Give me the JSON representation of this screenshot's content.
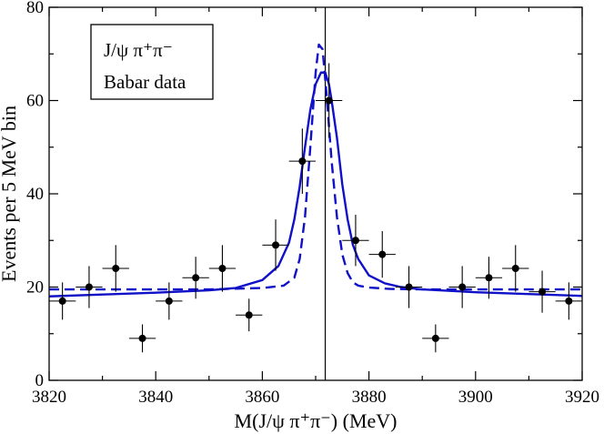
{
  "chart_data": {
    "type": "scatter",
    "title": "",
    "xlabel": "M(J/ψ π⁺π⁻) (MeV)",
    "ylabel": "Events per 5 MeV bin",
    "xlim": [
      3820,
      3920
    ],
    "ylim": [
      0,
      80
    ],
    "x_ticks": [
      3820,
      3840,
      3860,
      3880,
      3900,
      3920
    ],
    "x_tick_labels": [
      "3820",
      "3840",
      "3860",
      "3880",
      "3900",
      "3920"
    ],
    "y_ticks": [
      0,
      20,
      40,
      60,
      80
    ],
    "y_tick_labels": [
      "0",
      "20",
      "40",
      "60",
      "80"
    ],
    "legend": {
      "line1": "J/ψ π⁺π⁻",
      "line2": "Babar data",
      "placement": "top-left"
    },
    "vertical_line_x": 3871.8,
    "series": [
      {
        "name": "Babar data",
        "kind": "points-with-errors",
        "x": [
          3822.5,
          3827.5,
          3832.5,
          3837.5,
          3842.5,
          3847.5,
          3852.5,
          3857.5,
          3862.5,
          3867.5,
          3872.5,
          3877.5,
          3882.5,
          3887.5,
          3892.5,
          3897.5,
          3902.5,
          3907.5,
          3912.5,
          3917.5
        ],
        "y": [
          17,
          20,
          24,
          9,
          17,
          22,
          24,
          14,
          29,
          47,
          60,
          30,
          27,
          20,
          9,
          20,
          22,
          24,
          19,
          17
        ],
        "x_err": 2.5,
        "y_err": [
          4,
          4.5,
          5,
          3,
          4,
          4.5,
          5,
          3.5,
          5.5,
          7,
          8,
          5.5,
          5,
          4.5,
          3,
          4.5,
          4.5,
          5,
          4.5,
          4
        ]
      },
      {
        "name": "Fit (solid)",
        "kind": "curve",
        "style": "solid",
        "color": "#1010c8",
        "x": [
          3820,
          3830,
          3840,
          3850,
          3855,
          3860,
          3863,
          3865,
          3866,
          3867,
          3868,
          3869,
          3870,
          3871,
          3871.8,
          3872.5,
          3873,
          3874,
          3875,
          3876,
          3877,
          3878,
          3880,
          3883,
          3886,
          3890,
          3900,
          3910,
          3920
        ],
        "y": [
          18.0,
          18.4,
          18.8,
          19.3,
          19.8,
          21.5,
          24.5,
          29.5,
          34.5,
          41.5,
          50.0,
          58.0,
          63.5,
          66.0,
          66.0,
          63.5,
          60.0,
          52.0,
          42.0,
          34.5,
          29.0,
          26.0,
          22.5,
          20.8,
          20.0,
          19.5,
          18.9,
          18.5,
          18.1
        ]
      },
      {
        "name": "Fit (dashed)",
        "kind": "curve",
        "style": "dashed",
        "color": "#1010c8",
        "x": [
          3820,
          3830,
          3840,
          3850,
          3860,
          3864,
          3866,
          3867,
          3868,
          3869,
          3870,
          3870.6,
          3871.3,
          3872,
          3873,
          3874,
          3875,
          3876,
          3877,
          3878,
          3880,
          3884,
          3890,
          3900,
          3910,
          3920
        ],
        "y": [
          19.5,
          19.5,
          19.5,
          19.5,
          19.8,
          20.3,
          22.0,
          26.0,
          35.0,
          50.0,
          66.0,
          72.0,
          71.0,
          62.0,
          47.0,
          35.0,
          27.0,
          23.0,
          21.0,
          20.3,
          19.9,
          19.6,
          19.5,
          19.5,
          19.5,
          19.5
        ]
      }
    ]
  }
}
